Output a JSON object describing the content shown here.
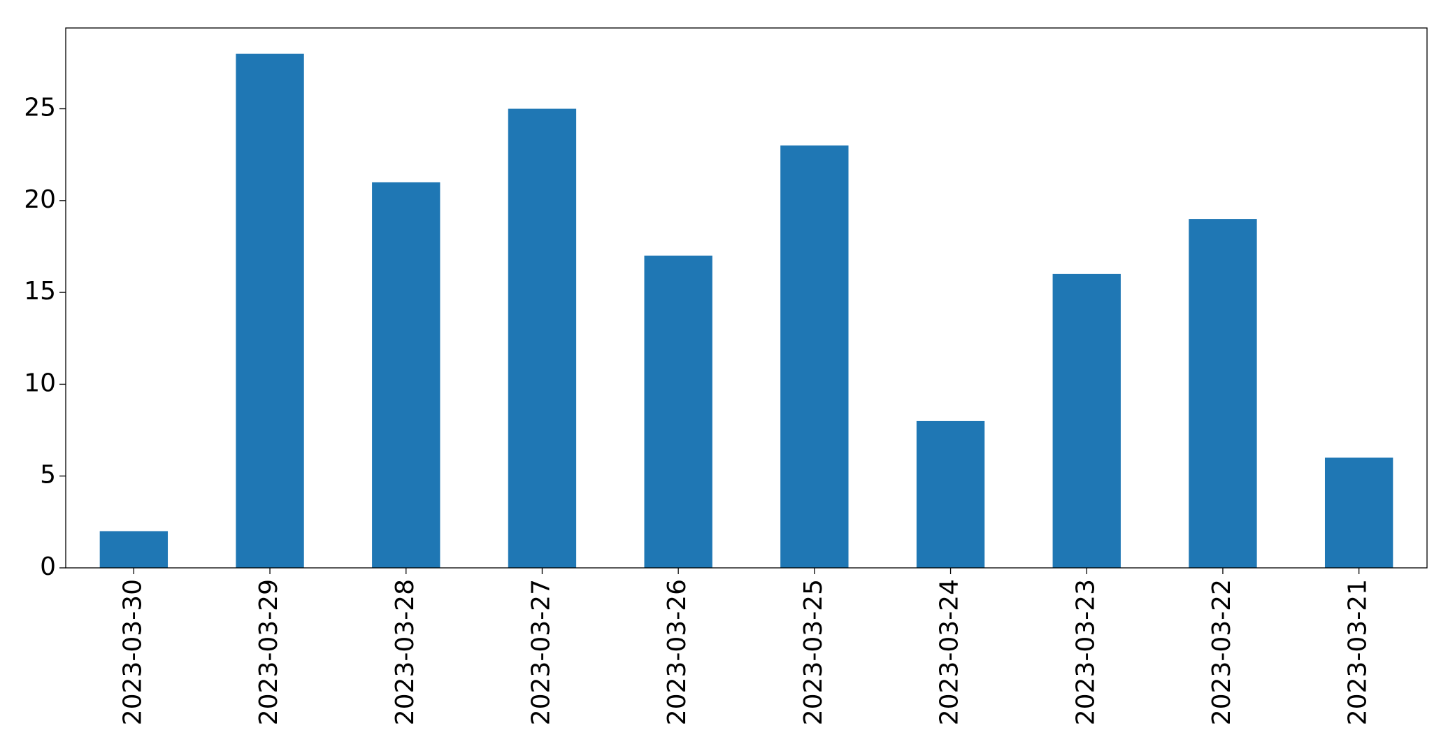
{
  "chart_data": {
    "type": "bar",
    "categories": [
      "2023-03-30",
      "2023-03-29",
      "2023-03-28",
      "2023-03-27",
      "2023-03-26",
      "2023-03-25",
      "2023-03-24",
      "2023-03-23",
      "2023-03-22",
      "2023-03-21"
    ],
    "values": [
      2,
      28,
      21,
      25,
      17,
      23,
      8,
      16,
      19,
      6
    ],
    "color": "#1f77b4",
    "ylim": [
      0,
      29.4
    ],
    "yticks": [
      0,
      5,
      10,
      15,
      20,
      25
    ],
    "grid": false
  }
}
